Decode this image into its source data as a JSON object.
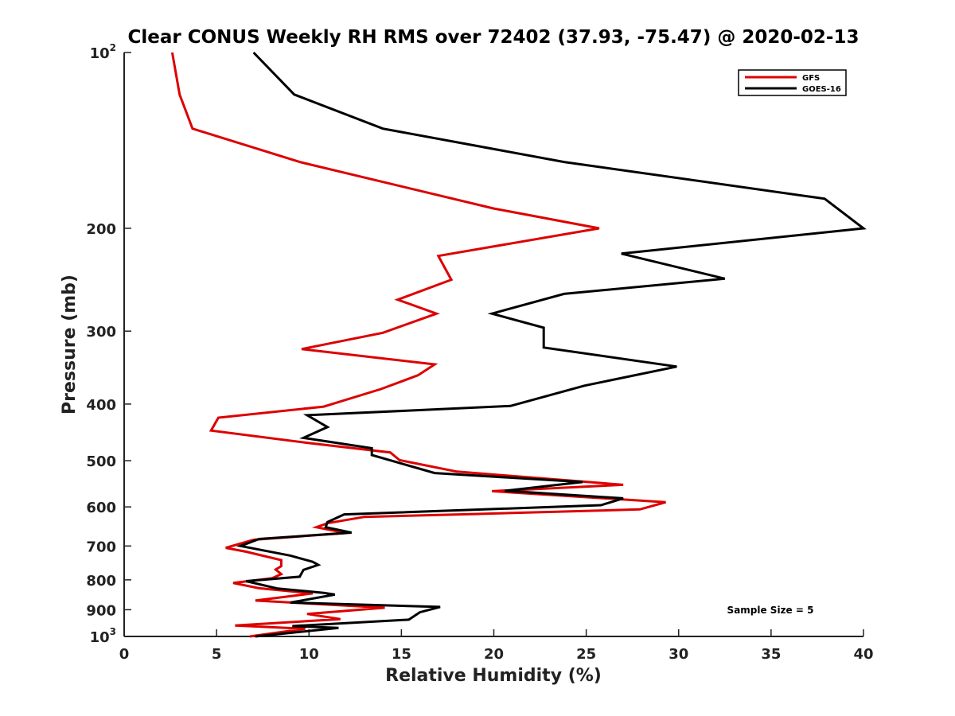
{
  "colors": {
    "gfs": "#dd0000",
    "goes": "#000000",
    "axis": "#222222"
  },
  "chart_data": {
    "type": "line",
    "title": "Clear CONUS Weekly RH RMS over 72402 (37.93, -75.47) @ 2020-02-13",
    "xlabel": "Relative Humidity (%)",
    "ylabel": "Pressure (mb)",
    "xlim": [
      0,
      40
    ],
    "ylim": [
      100,
      1000
    ],
    "y_scale": "log",
    "y_reversed": true,
    "grid": false,
    "legend_position": "top-right",
    "x_ticks": [
      0,
      5,
      10,
      15,
      20,
      25,
      30,
      35,
      40
    ],
    "x_tick_labels": [
      "0",
      "5",
      "10",
      "15",
      "20",
      "25",
      "30",
      "35",
      "40"
    ],
    "y_ticks": [
      100,
      200,
      300,
      400,
      500,
      600,
      700,
      800,
      900,
      1000
    ],
    "y_tick_labels": [
      {
        "base": "10",
        "exp": "2"
      },
      {
        "base": "200",
        "exp": ""
      },
      {
        "base": "300",
        "exp": ""
      },
      {
        "base": "400",
        "exp": ""
      },
      {
        "base": "500",
        "exp": ""
      },
      {
        "base": "600",
        "exp": ""
      },
      {
        "base": "700",
        "exp": ""
      },
      {
        "base": "800",
        "exp": ""
      },
      {
        "base": "900",
        "exp": ""
      },
      {
        "base": "10",
        "exp": "3"
      }
    ],
    "annotation": "Sample Size = 5",
    "series": [
      {
        "name": "GFS",
        "color": "#dd0000",
        "points": [
          [
            2.6,
            100
          ],
          [
            3.0,
            118
          ],
          [
            3.7,
            135
          ],
          [
            9.5,
            154
          ],
          [
            20.0,
            185
          ],
          [
            25.7,
            200
          ],
          [
            17.0,
            223
          ],
          [
            17.7,
            245
          ],
          [
            14.8,
            265
          ],
          [
            16.9,
            280
          ],
          [
            14.0,
            302
          ],
          [
            9.6,
            322
          ],
          [
            16.8,
            342
          ],
          [
            15.9,
            357
          ],
          [
            13.9,
            377
          ],
          [
            10.8,
            404
          ],
          [
            5.1,
            422
          ],
          [
            4.7,
            444
          ],
          [
            9.9,
            466
          ],
          [
            14.4,
            484
          ],
          [
            14.9,
            499
          ],
          [
            18.0,
            522
          ],
          [
            27.0,
            550
          ],
          [
            19.9,
            564
          ],
          [
            29.3,
            589
          ],
          [
            27.9,
            606
          ],
          [
            19.0,
            617
          ],
          [
            13.0,
            624
          ],
          [
            11.0,
            640
          ],
          [
            10.4,
            650
          ],
          [
            12.0,
            665
          ],
          [
            7.0,
            683
          ],
          [
            5.5,
            705
          ],
          [
            6.6,
            716
          ],
          [
            8.5,
            740
          ],
          [
            8.5,
            758
          ],
          [
            8.2,
            768
          ],
          [
            8.5,
            782
          ],
          [
            8.0,
            795
          ],
          [
            5.9,
            810
          ],
          [
            7.3,
            827
          ],
          [
            10.2,
            844
          ],
          [
            7.1,
            868
          ],
          [
            14.1,
            893
          ],
          [
            9.9,
            915
          ],
          [
            11.7,
            934
          ],
          [
            6.0,
            958
          ],
          [
            9.8,
            970
          ],
          [
            6.8,
            1000
          ]
        ]
      },
      {
        "name": "GOES-16",
        "color": "#000000",
        "points": [
          [
            7.0,
            100
          ],
          [
            9.2,
            118
          ],
          [
            14.0,
            135
          ],
          [
            23.8,
            154
          ],
          [
            37.9,
            178
          ],
          [
            40.0,
            200
          ],
          [
            26.9,
            221
          ],
          [
            32.5,
            244
          ],
          [
            23.8,
            259
          ],
          [
            19.9,
            280
          ],
          [
            22.7,
            296
          ],
          [
            22.7,
            320
          ],
          [
            29.9,
            345
          ],
          [
            24.9,
            372
          ],
          [
            20.9,
            403
          ],
          [
            9.9,
            418
          ],
          [
            11.0,
            438
          ],
          [
            9.7,
            457
          ],
          [
            13.4,
            476
          ],
          [
            13.4,
            489
          ],
          [
            16.8,
            525
          ],
          [
            24.8,
            544
          ],
          [
            20.6,
            563
          ],
          [
            27.0,
            580
          ],
          [
            25.8,
            596
          ],
          [
            11.9,
            618
          ],
          [
            11.0,
            637
          ],
          [
            10.9,
            650
          ],
          [
            12.3,
            664
          ],
          [
            7.3,
            681
          ],
          [
            6.3,
            700
          ],
          [
            9.0,
            727
          ],
          [
            10.2,
            745
          ],
          [
            10.5,
            754
          ],
          [
            9.7,
            769
          ],
          [
            9.5,
            790
          ],
          [
            6.6,
            804
          ],
          [
            8.3,
            828
          ],
          [
            10.8,
            842
          ],
          [
            11.4,
            848
          ],
          [
            9.0,
            875
          ],
          [
            17.1,
            890
          ],
          [
            16.0,
            909
          ],
          [
            15.4,
            936
          ],
          [
            9.1,
            960
          ],
          [
            11.6,
            967
          ],
          [
            7.1,
            1000
          ]
        ]
      }
    ]
  }
}
